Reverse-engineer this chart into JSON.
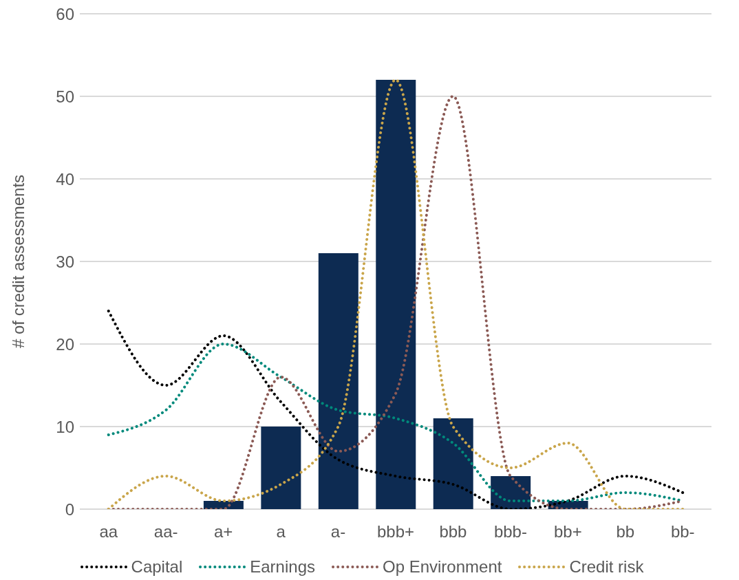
{
  "chart_data": {
    "type": "bar",
    "ylabel": "# of credit assessments",
    "categories": [
      "aa",
      "aa-",
      "a+",
      "a",
      "a-",
      "bbb+",
      "bbb",
      "bbb-",
      "bb+",
      "bb",
      "bb-"
    ],
    "series": [
      {
        "color": "#0d2b52",
        "values": [
          0,
          0,
          1,
          10,
          31,
          52,
          11,
          4,
          1,
          0,
          0
        ]
      },
      {
        "type": "line",
        "name": "Capital",
        "color": "#000000",
        "values": [
          24,
          15,
          21,
          13,
          6,
          4,
          3,
          0,
          1,
          4,
          2
        ]
      },
      {
        "type": "line",
        "name": "Earnings",
        "color": "#00897b",
        "values": [
          9,
          12,
          20,
          16,
          12,
          11,
          8,
          1,
          1,
          2,
          1
        ]
      },
      {
        "type": "line",
        "name": "Op Environment",
        "color": "#8b5a55",
        "values": [
          0,
          0,
          0,
          16,
          7,
          14,
          50,
          4,
          0,
          0,
          1
        ]
      },
      {
        "type": "line",
        "name": "Credit risk",
        "color": "#c9a54a",
        "values": [
          0,
          4,
          1,
          3,
          10,
          52,
          10,
          5,
          8,
          0,
          0
        ]
      }
    ],
    "ylim": [
      0,
      60
    ],
    "yticks": [
      0,
      10,
      20,
      30,
      40,
      50,
      60
    ],
    "grid": "y",
    "legend": "bottom",
    "line_style": "dotted",
    "marker": "none"
  }
}
